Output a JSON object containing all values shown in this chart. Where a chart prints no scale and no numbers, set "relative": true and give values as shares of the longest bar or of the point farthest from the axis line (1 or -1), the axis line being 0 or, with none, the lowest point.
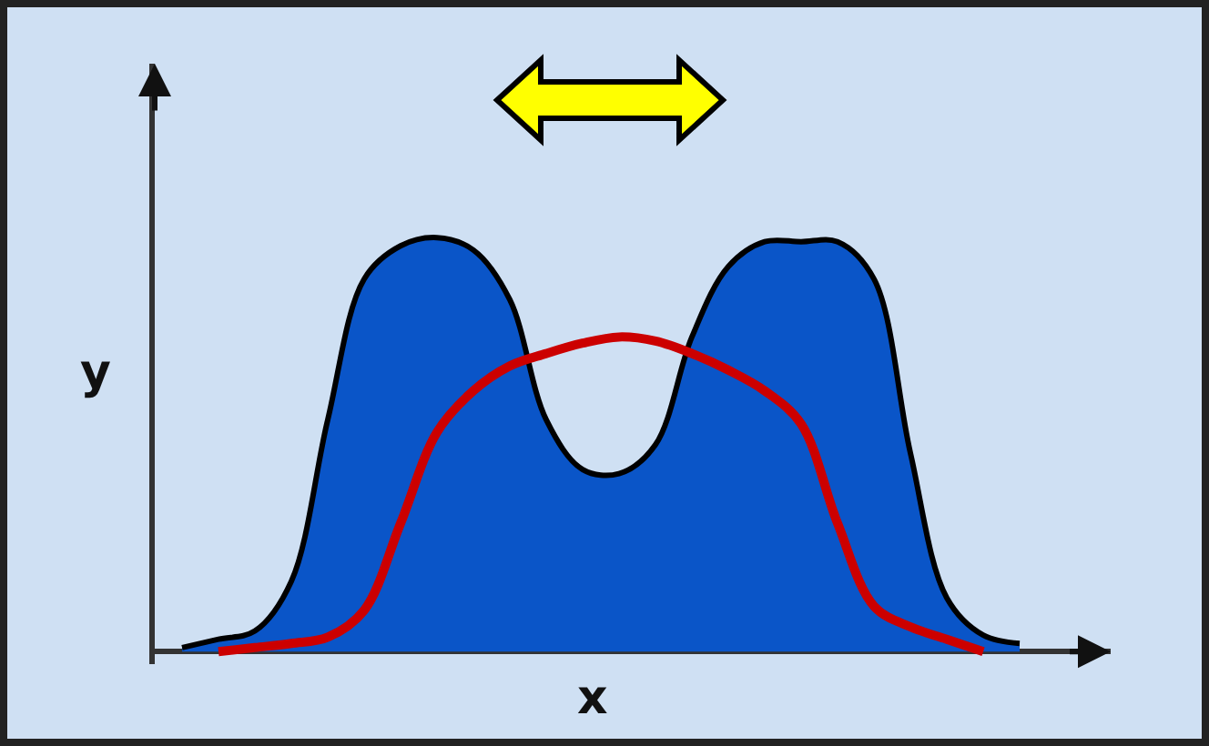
{
  "chart_data": {
    "type": "area",
    "relative": true,
    "xlabel": "x",
    "ylabel": "y",
    "legend": false,
    "categories": [
      null,
      null,
      null,
      null,
      null,
      null,
      null,
      null,
      null,
      null,
      null,
      null,
      null,
      null,
      null,
      null,
      null,
      null,
      null,
      null,
      null,
      null,
      null,
      null
    ],
    "series": [
      {
        "color": "#0a55c8",
        "values": [
          0.01,
          0.03,
          0.05,
          0.17,
          0.56,
          0.9,
          0.98,
          1.0,
          0.97,
          0.85,
          0.56,
          0.44,
          0.43,
          0.5,
          0.76,
          0.93,
          0.99,
          0.99,
          0.99,
          0.9,
          0.48,
          0.13,
          0.04,
          0.02
        ]
      },
      {
        "type": "line",
        "color": "#cc0000",
        "values": [
          null,
          0.0,
          0.01,
          0.02,
          0.035,
          0.1,
          0.31,
          0.53,
          0.63,
          0.69,
          0.72,
          0.745,
          0.76,
          0.75,
          0.72,
          0.68,
          0.63,
          0.55,
          0.31,
          0.11,
          0.06,
          0.03,
          0.0,
          null
        ]
      }
    ]
  }
}
